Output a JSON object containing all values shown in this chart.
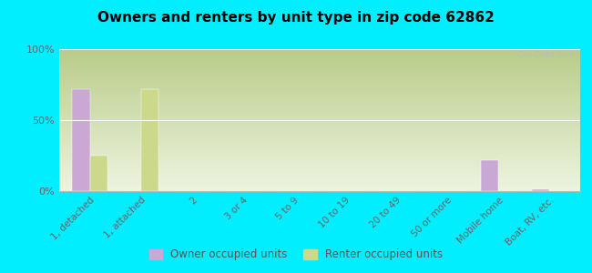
{
  "title": "Owners and renters by unit type in zip code 62862",
  "categories": [
    "1, detached",
    "1, attached",
    "2",
    "3 or 4",
    "5 to 9",
    "10 to 19",
    "20 to 49",
    "50 or more",
    "Mobile home",
    "Boat, RV, etc."
  ],
  "owner_values": [
    72,
    0,
    0,
    0,
    0,
    0,
    0,
    0,
    22,
    1
  ],
  "renter_values": [
    25,
    72,
    0,
    0,
    0,
    0,
    0,
    0,
    0,
    0
  ],
  "owner_color": "#c9a8d5",
  "renter_color": "#ccd88a",
  "background_color": "#00eeff",
  "ylim": [
    0,
    100
  ],
  "yticks": [
    0,
    50,
    100
  ],
  "ytick_labels": [
    "0%",
    "50%",
    "100%"
  ],
  "bar_width": 0.35,
  "legend_owner": "Owner occupied units",
  "legend_renter": "Renter occupied units",
  "watermark": "City-Data.com",
  "plot_grad_top": "#b8cc88",
  "plot_grad_bottom": "#eef4e0"
}
